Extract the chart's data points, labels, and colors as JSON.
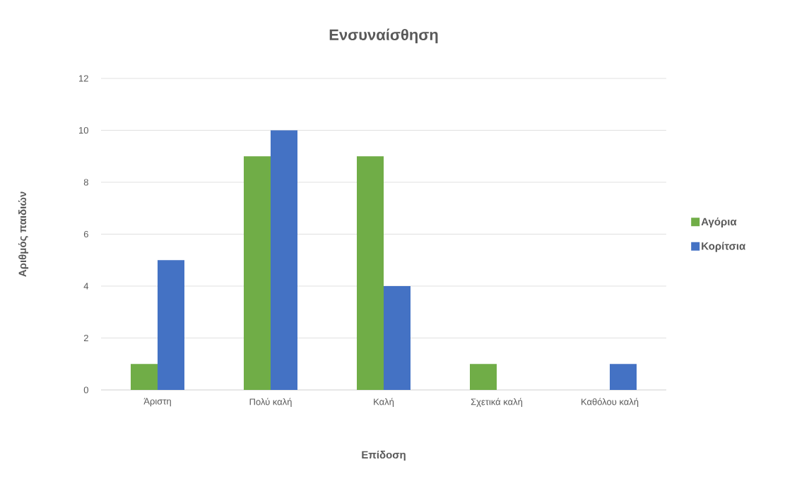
{
  "chart_data": {
    "type": "bar",
    "title": "Ενσυναίσθηση",
    "xlabel": "Επίδοση",
    "ylabel": "Αριθμός παιδιών",
    "categories": [
      "Άριστη",
      "Πολύ καλή",
      "Καλή",
      "Σχετικά καλή",
      "Καθόλου καλή"
    ],
    "series": [
      {
        "name": "Αγόρια",
        "color": "#70ad47",
        "values": [
          1,
          9,
          9,
          1,
          0
        ]
      },
      {
        "name": "Κορίτσια",
        "color": "#4472c4",
        "values": [
          5,
          10,
          4,
          0,
          1
        ]
      }
    ],
    "ylim": [
      0,
      12
    ],
    "yticks": [
      0,
      2,
      4,
      6,
      8,
      10,
      12
    ],
    "grid": "y",
    "legend": "right"
  }
}
